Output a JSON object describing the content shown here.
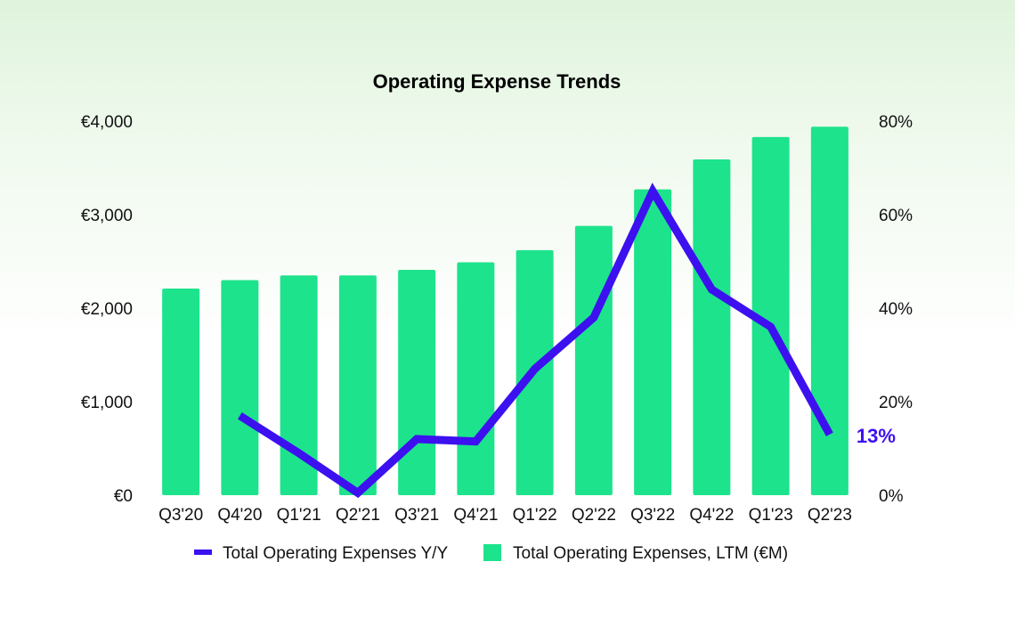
{
  "chart_data": {
    "type": "bar",
    "title": "Operating Expense Trends",
    "categories": [
      "Q3'20",
      "Q4'20",
      "Q1'21",
      "Q2'21",
      "Q3'21",
      "Q4'21",
      "Q1'22",
      "Q2'22",
      "Q3'22",
      "Q4'22",
      "Q1'23",
      "Q2'23"
    ],
    "series": [
      {
        "name": "Total Operating Expenses, LTM (€M)",
        "type": "bar",
        "axis": "left",
        "color": "#1de38c",
        "values": [
          2210,
          2300,
          2350,
          2350,
          2410,
          2490,
          2620,
          2880,
          3270,
          3590,
          3830,
          3940
        ]
      },
      {
        "name": "Total Operating Expenses Y/Y",
        "type": "line",
        "axis": "right",
        "color": "#3d10f0",
        "values": [
          null,
          17,
          9,
          0.5,
          12,
          11.5,
          27,
          38,
          65,
          44,
          36,
          13
        ]
      }
    ],
    "y_left": {
      "ticks": [
        "€0",
        "€1,000",
        "€2,000",
        "€3,000",
        "€4,000"
      ],
      "ylim": [
        0,
        4000
      ]
    },
    "y_right": {
      "ticks": [
        "0%",
        "20%",
        "40%",
        "60%",
        "80%"
      ],
      "ylim": [
        0,
        80
      ]
    },
    "end_label": "13%",
    "legend_position": "bottom"
  }
}
